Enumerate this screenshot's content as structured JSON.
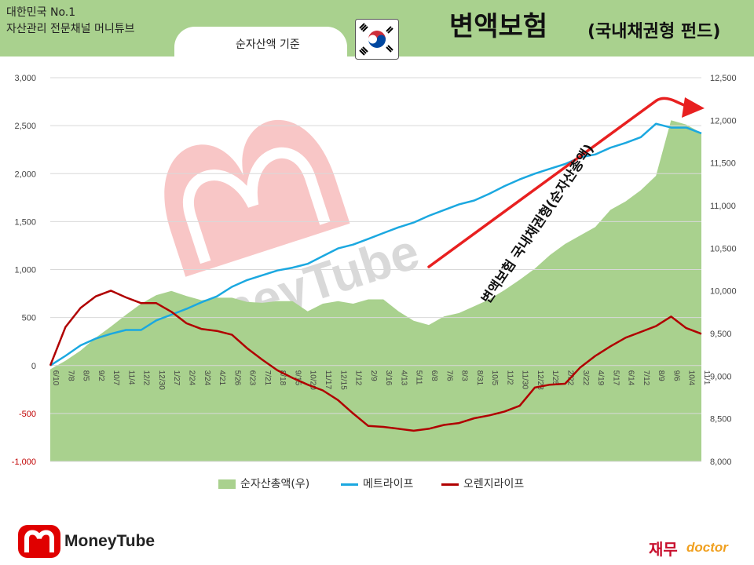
{
  "header": {
    "channel_line1": "대한민국 No.1",
    "channel_line2": "자산관리 전문채널 머니튜브",
    "subtitle": "순자산액 기준",
    "title": "변액보험",
    "title_sub": "(국내채권형 펀드)"
  },
  "annotation": {
    "text": "변액보험  국내채권형(순자산총액)"
  },
  "brand": {
    "left": "MoneyTube",
    "watermark": "MoneyTube",
    "right_a": "재무",
    "right_b": "doctor"
  },
  "colors": {
    "area": "#a9d18e",
    "metlife": "#1ba8e0",
    "orange": "#b00000",
    "arrow": "#e82020",
    "header": "#a9d18e",
    "negative_label": "#c00000"
  },
  "chart_data": {
    "type": "line",
    "x_tick_labels": [
      "6/10",
      "7/8",
      "8/5",
      "9/2",
      "10/7",
      "11/4",
      "12/2",
      "12/30",
      "1/27",
      "2/24",
      "3/24",
      "4/21",
      "5/26",
      "6/23",
      "7/21",
      "8/18",
      "9/15",
      "10/20",
      "11/17",
      "12/15",
      "1/12",
      "2/9",
      "3/16",
      "4/13",
      "5/11",
      "6/8",
      "7/6",
      "8/3",
      "8/31",
      "10/5",
      "11/2",
      "11/30",
      "12/28",
      "1/25",
      "2/22",
      "3/22",
      "4/19",
      "5/17",
      "6/14",
      "7/12",
      "8/9",
      "9/6",
      "10/4",
      "11/1"
    ],
    "y_left": {
      "range": [
        -1000,
        3000
      ],
      "ticks": [
        "-1,000",
        "-500",
        "0",
        "500",
        "1,000",
        "1,500",
        "2,000",
        "2,500",
        "3,000"
      ]
    },
    "y_right": {
      "range": [
        8000,
        12500
      ],
      "ticks": [
        "8,000",
        "8,500",
        "9,000",
        "9,500",
        "10,000",
        "10,500",
        "11,000",
        "11,500",
        "12,000",
        "12,500"
      ]
    },
    "series": [
      {
        "name": "순자산총액(우)",
        "axis": "right",
        "style": "area",
        "values": [
          9080,
          9180,
          9300,
          9450,
          9580,
          9720,
          9850,
          9950,
          10000,
          9940,
          9890,
          9920,
          9920,
          9870,
          9860,
          9880,
          9880,
          9760,
          9850,
          9880,
          9850,
          9900,
          9900,
          9760,
          9650,
          9600,
          9700,
          9740,
          9820,
          9900,
          10010,
          10130,
          10260,
          10420,
          10550,
          10650,
          10750,
          10950,
          11050,
          11180,
          11350,
          12000,
          11950,
          11850
        ]
      },
      {
        "name": "메트라이프",
        "axis": "left",
        "style": "line",
        "values": [
          0,
          100,
          210,
          280,
          330,
          370,
          370,
          470,
          530,
          590,
          660,
          720,
          820,
          890,
          940,
          990,
          1020,
          1060,
          1140,
          1220,
          1260,
          1320,
          1380,
          1440,
          1490,
          1560,
          1620,
          1680,
          1720,
          1790,
          1870,
          1940,
          2000,
          2050,
          2100,
          2170,
          2200,
          2270,
          2320,
          2380,
          2520,
          2480,
          2480,
          2420
        ]
      },
      {
        "name": "오렌지라이프",
        "axis": "left",
        "style": "line",
        "values": [
          0,
          400,
          600,
          720,
          780,
          710,
          650,
          650,
          560,
          440,
          380,
          360,
          320,
          180,
          60,
          -50,
          -130,
          -200,
          -260,
          -360,
          -500,
          -630,
          -640,
          -660,
          -680,
          -660,
          -620,
          -600,
          -550,
          -520,
          -480,
          -420,
          -230,
          -200,
          -190,
          -20,
          100,
          200,
          290,
          350,
          410,
          510,
          390,
          330
        ]
      }
    ]
  }
}
